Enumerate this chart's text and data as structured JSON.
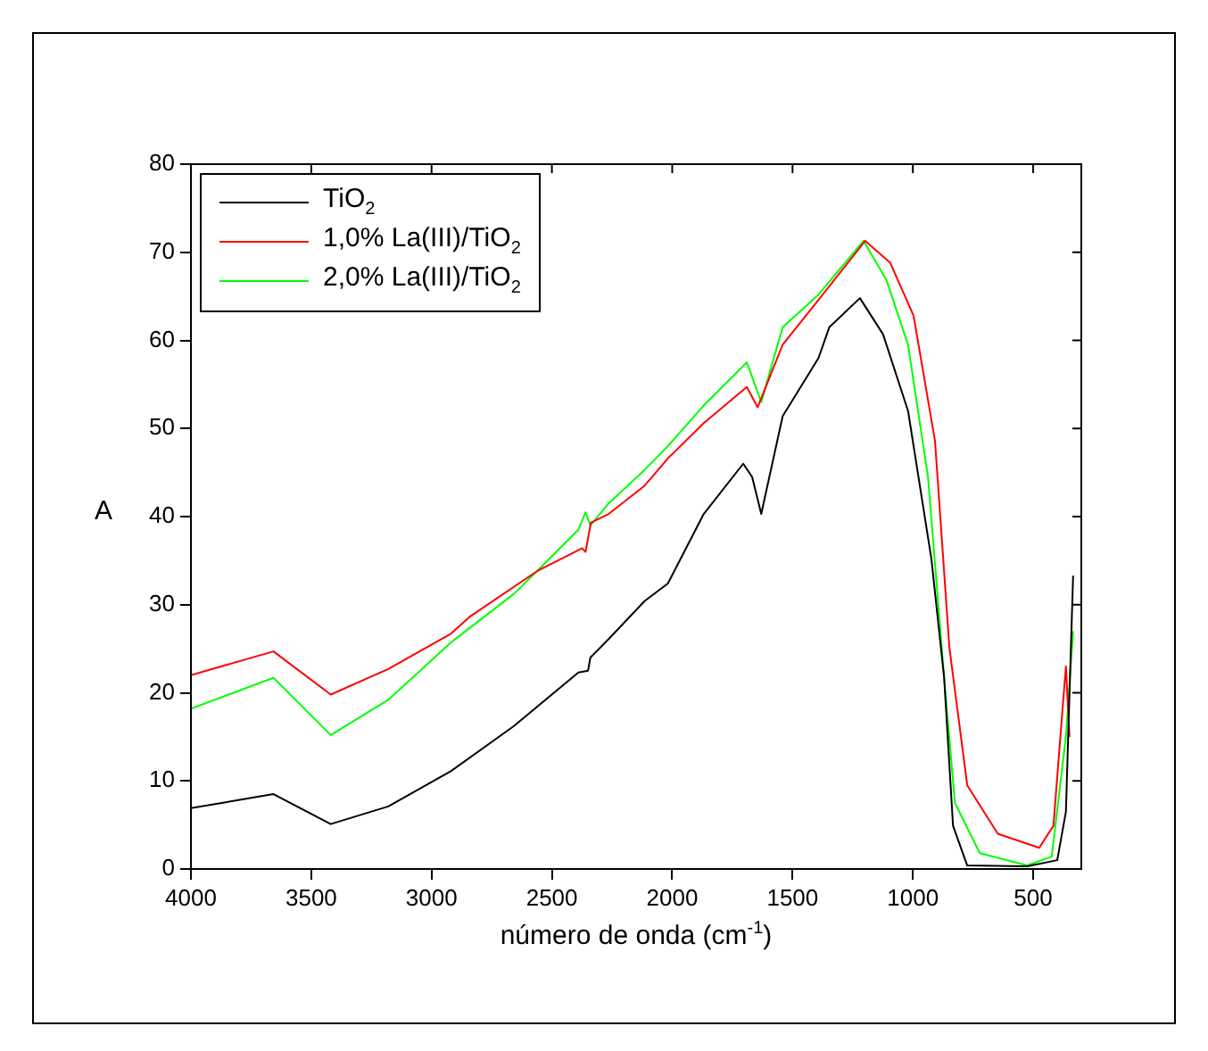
{
  "chart_data": {
    "type": "line",
    "xlabel": "número de onda (cm$^{-1}$)",
    "ylabel": "A",
    "xlim": [
      4000,
      300
    ],
    "xticks": [
      4000,
      3500,
      3000,
      2500,
      2000,
      1500,
      1000,
      500
    ],
    "ylim": [
      0,
      80
    ],
    "yticks": [
      0,
      10,
      20,
      30,
      40,
      50,
      60,
      70,
      80
    ],
    "grid": false,
    "legend": "top left",
    "marker": "none",
    "line_style": "solid",
    "series": [
      {
        "name": "TiO$_{2}$",
        "color": "#000000",
        "x": [
          4000,
          3657,
          3419,
          3180,
          2920,
          2659,
          2390,
          2350,
          2340,
          2264,
          2115,
          2018,
          1869,
          1705,
          1668,
          1630,
          1541,
          1392,
          1347,
          1220,
          1124,
          1020,
          923,
          870,
          833,
          774,
          525,
          400,
          364,
          349,
          334
        ],
        "values": [
          6.9,
          8.5,
          5.1,
          7.1,
          11.1,
          16.2,
          22.3,
          22.5,
          24,
          26.1,
          30.4,
          32.4,
          40.3,
          46,
          44.5,
          40.3,
          51.4,
          58,
          61.5,
          64.8,
          60.7,
          52,
          35.2,
          21.7,
          4.9,
          0.4,
          0.3,
          1,
          6.5,
          20,
          33.3
        ]
      },
      {
        "name": "1,0% La(III)/TiO$_{2}$",
        "color": "#ff0000",
        "x": [
          4000,
          3657,
          3419,
          3180,
          2920,
          2838,
          2562,
          2375,
          2360,
          2338,
          2264,
          2115,
          2018,
          1869,
          1690,
          1645,
          1541,
          1392,
          1198,
          1094,
          997,
          908,
          848,
          774,
          647,
          475,
          416,
          364,
          349
        ],
        "values": [
          22,
          24.7,
          19.8,
          22.7,
          26.7,
          28.7,
          33.8,
          36.4,
          36,
          39.3,
          40.3,
          43.5,
          46.6,
          50.6,
          54.7,
          52.4,
          59.5,
          64.6,
          71.3,
          68.8,
          62.8,
          48.6,
          25.1,
          9.5,
          4,
          2.4,
          4.9,
          23,
          15
        ]
      },
      {
        "name": "2,0% La(III)/TiO$_{2}$",
        "color": "#00ff00",
        "x": [
          4000,
          3657,
          3419,
          3180,
          2920,
          2659,
          2562,
          2390,
          2360,
          2340,
          2264,
          2115,
          2018,
          1869,
          1690,
          1630,
          1541,
          1392,
          1205,
          1109,
          1020,
          937,
          870,
          825,
          722,
          525,
          423,
          364,
          334
        ],
        "values": [
          18.2,
          21.7,
          15.2,
          19.2,
          25.7,
          31.2,
          33.8,
          38.5,
          40.5,
          39,
          41.5,
          45.3,
          48,
          52.6,
          57.5,
          53,
          61.5,
          65.2,
          71.3,
          66.8,
          59.5,
          44.5,
          21.7,
          7.5,
          1.8,
          0.4,
          1.4,
          15,
          27
        ]
      }
    ]
  }
}
